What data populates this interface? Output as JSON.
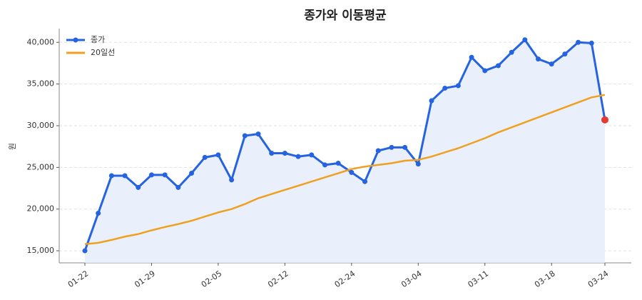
{
  "chart_data": {
    "type": "line",
    "title": "종가와 이동평균",
    "y_label": "원",
    "categories": [
      "01-22",
      null,
      null,
      null,
      null,
      "01-29",
      null,
      null,
      null,
      null,
      "02-05",
      null,
      null,
      null,
      null,
      "02-12",
      null,
      null,
      null,
      null,
      "02-24",
      null,
      null,
      null,
      null,
      "03-04",
      null,
      null,
      null,
      null,
      "03-11",
      null,
      null,
      null,
      null,
      "03-18",
      null,
      null,
      null,
      "03-24"
    ],
    "series": [
      {
        "name": "종가",
        "color": "#2563e0",
        "marker": true,
        "fill": "#e8eefb",
        "last_point_color": "#e53935",
        "values": [
          15000,
          19500,
          24000,
          24000,
          22600,
          24100,
          24100,
          22600,
          24300,
          26200,
          26500,
          23500,
          28800,
          29000,
          26700,
          26700,
          26300,
          26500,
          25300,
          25500,
          24400,
          23300,
          27000,
          27400,
          27400,
          25400,
          33000,
          34500,
          34800,
          38200,
          36600,
          37200,
          38800,
          40300,
          38000,
          37400,
          38600,
          40000,
          39900,
          30700
        ]
      },
      {
        "name": "20일선",
        "color": "#f0a020",
        "marker": false,
        "values": [
          15800,
          15950,
          16300,
          16700,
          17000,
          17450,
          17850,
          18200,
          18600,
          19100,
          19600,
          20000,
          20600,
          21300,
          21800,
          22300,
          22800,
          23300,
          23800,
          24300,
          24800,
          25100,
          25300,
          25500,
          25800,
          25900,
          26300,
          26800,
          27300,
          27900,
          28500,
          29200,
          29800,
          30400,
          31000,
          31600,
          32200,
          32800,
          33400,
          33700
        ]
      }
    ],
    "ylim": [
      13550,
      41650
    ],
    "yticks": [
      {
        "value": 15000,
        "label": "15,000"
      },
      {
        "value": 20000,
        "label": "20,000"
      },
      {
        "value": 25000,
        "label": "25,000"
      },
      {
        "value": 30000,
        "label": "30,000"
      },
      {
        "value": 35000,
        "label": "35,000"
      },
      {
        "value": 40000,
        "label": "40,000"
      }
    ],
    "grid": true,
    "legend": "upper left"
  }
}
